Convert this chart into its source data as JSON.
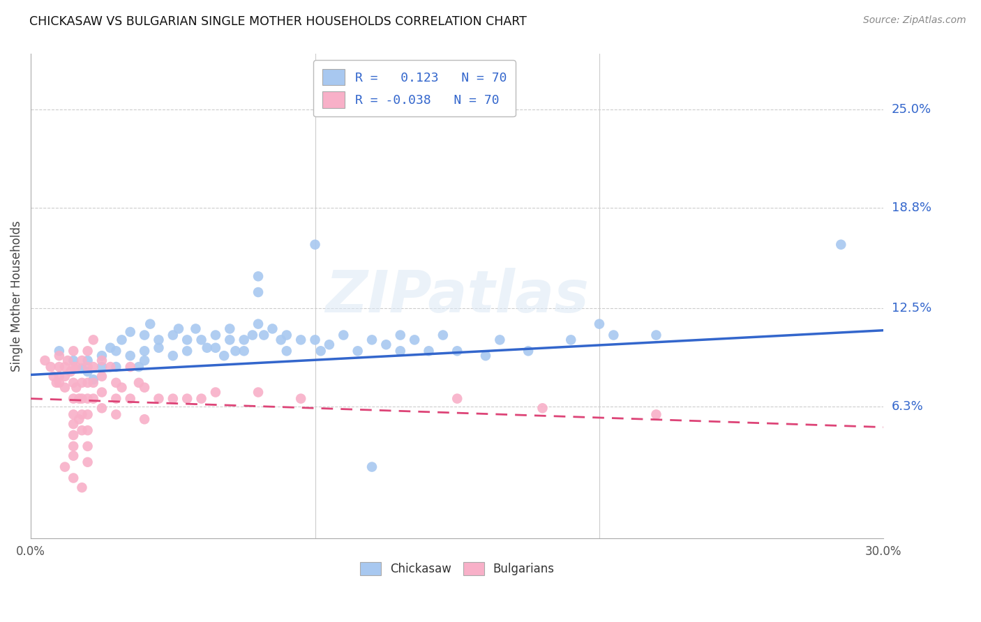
{
  "title": "CHICKASAW VS BULGARIAN SINGLE MOTHER HOUSEHOLDS CORRELATION CHART",
  "source": "Source: ZipAtlas.com",
  "ylabel": "Single Mother Households",
  "ytick_labels": [
    "25.0%",
    "18.8%",
    "12.5%",
    "6.3%"
  ],
  "ytick_values": [
    0.25,
    0.188,
    0.125,
    0.063
  ],
  "xlim": [
    0.0,
    0.3
  ],
  "ylim": [
    -0.02,
    0.285
  ],
  "chickasaw_color": "#a8c8f0",
  "bulgarian_color": "#f8b0c8",
  "chickasaw_line_color": "#3366cc",
  "bulgarian_line_color": "#dd4477",
  "legend_label1": "Chickasaw",
  "legend_label2": "Bulgarians",
  "chickasaw_line_y0": 0.083,
  "chickasaw_line_y1": 0.111,
  "bulgarian_line_y0": 0.068,
  "bulgarian_line_y1": 0.05,
  "chickasaw_scatter": [
    [
      0.01,
      0.098
    ],
    [
      0.015,
      0.092
    ],
    [
      0.018,
      0.087
    ],
    [
      0.02,
      0.085
    ],
    [
      0.02,
      0.092
    ],
    [
      0.022,
      0.08
    ],
    [
      0.025,
      0.088
    ],
    [
      0.025,
      0.095
    ],
    [
      0.028,
      0.1
    ],
    [
      0.03,
      0.088
    ],
    [
      0.03,
      0.098
    ],
    [
      0.032,
      0.105
    ],
    [
      0.035,
      0.095
    ],
    [
      0.035,
      0.11
    ],
    [
      0.038,
      0.088
    ],
    [
      0.04,
      0.098
    ],
    [
      0.04,
      0.108
    ],
    [
      0.04,
      0.092
    ],
    [
      0.042,
      0.115
    ],
    [
      0.045,
      0.1
    ],
    [
      0.045,
      0.105
    ],
    [
      0.05,
      0.095
    ],
    [
      0.05,
      0.108
    ],
    [
      0.052,
      0.112
    ],
    [
      0.055,
      0.098
    ],
    [
      0.055,
      0.105
    ],
    [
      0.058,
      0.112
    ],
    [
      0.06,
      0.105
    ],
    [
      0.062,
      0.1
    ],
    [
      0.065,
      0.108
    ],
    [
      0.065,
      0.1
    ],
    [
      0.068,
      0.095
    ],
    [
      0.07,
      0.112
    ],
    [
      0.07,
      0.105
    ],
    [
      0.072,
      0.098
    ],
    [
      0.075,
      0.105
    ],
    [
      0.075,
      0.098
    ],
    [
      0.078,
      0.108
    ],
    [
      0.08,
      0.145
    ],
    [
      0.08,
      0.135
    ],
    [
      0.08,
      0.115
    ],
    [
      0.082,
      0.108
    ],
    [
      0.085,
      0.112
    ],
    [
      0.088,
      0.105
    ],
    [
      0.09,
      0.098
    ],
    [
      0.09,
      0.108
    ],
    [
      0.095,
      0.105
    ],
    [
      0.1,
      0.165
    ],
    [
      0.1,
      0.105
    ],
    [
      0.102,
      0.098
    ],
    [
      0.105,
      0.102
    ],
    [
      0.11,
      0.108
    ],
    [
      0.115,
      0.098
    ],
    [
      0.12,
      0.105
    ],
    [
      0.125,
      0.102
    ],
    [
      0.13,
      0.098
    ],
    [
      0.13,
      0.108
    ],
    [
      0.135,
      0.105
    ],
    [
      0.14,
      0.098
    ],
    [
      0.145,
      0.108
    ],
    [
      0.15,
      0.098
    ],
    [
      0.16,
      0.095
    ],
    [
      0.165,
      0.105
    ],
    [
      0.175,
      0.098
    ],
    [
      0.19,
      0.105
    ],
    [
      0.2,
      0.115
    ],
    [
      0.205,
      0.108
    ],
    [
      0.22,
      0.108
    ],
    [
      0.285,
      0.165
    ],
    [
      0.12,
      0.025
    ]
  ],
  "bulgarian_scatter": [
    [
      0.005,
      0.092
    ],
    [
      0.007,
      0.088
    ],
    [
      0.008,
      0.082
    ],
    [
      0.009,
      0.078
    ],
    [
      0.01,
      0.095
    ],
    [
      0.01,
      0.088
    ],
    [
      0.01,
      0.082
    ],
    [
      0.01,
      0.078
    ],
    [
      0.012,
      0.088
    ],
    [
      0.012,
      0.082
    ],
    [
      0.012,
      0.075
    ],
    [
      0.013,
      0.092
    ],
    [
      0.014,
      0.085
    ],
    [
      0.015,
      0.098
    ],
    [
      0.015,
      0.088
    ],
    [
      0.015,
      0.078
    ],
    [
      0.015,
      0.068
    ],
    [
      0.015,
      0.058
    ],
    [
      0.015,
      0.052
    ],
    [
      0.015,
      0.045
    ],
    [
      0.015,
      0.038
    ],
    [
      0.015,
      0.032
    ],
    [
      0.016,
      0.088
    ],
    [
      0.016,
      0.075
    ],
    [
      0.017,
      0.068
    ],
    [
      0.017,
      0.055
    ],
    [
      0.018,
      0.092
    ],
    [
      0.018,
      0.078
    ],
    [
      0.018,
      0.068
    ],
    [
      0.018,
      0.058
    ],
    [
      0.018,
      0.048
    ],
    [
      0.02,
      0.098
    ],
    [
      0.02,
      0.088
    ],
    [
      0.02,
      0.078
    ],
    [
      0.02,
      0.068
    ],
    [
      0.02,
      0.058
    ],
    [
      0.02,
      0.048
    ],
    [
      0.02,
      0.038
    ],
    [
      0.02,
      0.028
    ],
    [
      0.022,
      0.105
    ],
    [
      0.022,
      0.088
    ],
    [
      0.022,
      0.078
    ],
    [
      0.022,
      0.068
    ],
    [
      0.025,
      0.092
    ],
    [
      0.025,
      0.082
    ],
    [
      0.025,
      0.072
    ],
    [
      0.025,
      0.062
    ],
    [
      0.028,
      0.088
    ],
    [
      0.03,
      0.078
    ],
    [
      0.03,
      0.068
    ],
    [
      0.03,
      0.058
    ],
    [
      0.032,
      0.075
    ],
    [
      0.035,
      0.088
    ],
    [
      0.035,
      0.068
    ],
    [
      0.038,
      0.078
    ],
    [
      0.04,
      0.075
    ],
    [
      0.04,
      0.055
    ],
    [
      0.045,
      0.068
    ],
    [
      0.05,
      0.068
    ],
    [
      0.055,
      0.068
    ],
    [
      0.06,
      0.068
    ],
    [
      0.065,
      0.072
    ],
    [
      0.08,
      0.072
    ],
    [
      0.095,
      0.068
    ],
    [
      0.15,
      0.068
    ],
    [
      0.18,
      0.062
    ],
    [
      0.22,
      0.058
    ],
    [
      0.012,
      0.025
    ],
    [
      0.015,
      0.018
    ],
    [
      0.018,
      0.012
    ]
  ]
}
